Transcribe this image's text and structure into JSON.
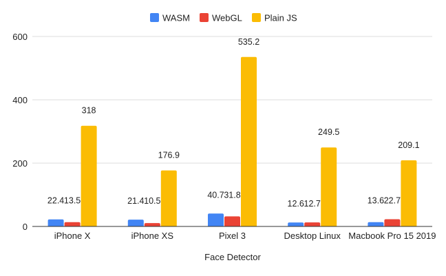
{
  "chart_data": {
    "type": "bar",
    "title": "",
    "xlabel": "Face Detector",
    "ylabel": "",
    "ylim": [
      0,
      600
    ],
    "yticks": [
      0,
      200,
      400,
      600
    ],
    "grid": true,
    "legend_position": "top",
    "categories": [
      "iPhone X",
      "iPhone XS",
      "Pixel 3",
      "Desktop Linux",
      "Macbook Pro 15 2019"
    ],
    "series": [
      {
        "name": "WASM",
        "color": "#4285F4",
        "values": [
          22.4,
          21.4,
          40.7,
          12.6,
          13.6
        ],
        "labels": [
          "22.4",
          "21.4",
          "40.7",
          "12.6",
          "13.6"
        ]
      },
      {
        "name": "WebGL",
        "color": "#EA4335",
        "values": [
          13.5,
          10.5,
          31.8,
          12.7,
          22.7
        ],
        "labels": [
          "13.5",
          "10.5",
          "31.8",
          "12.7",
          "22.7"
        ]
      },
      {
        "name": "Plain JS",
        "color": "#FBBC04",
        "values": [
          318,
          176.9,
          535.2,
          249.5,
          209.1
        ],
        "labels": [
          "318",
          "176.9",
          "535.2",
          "249.5",
          "209.1"
        ]
      }
    ]
  }
}
